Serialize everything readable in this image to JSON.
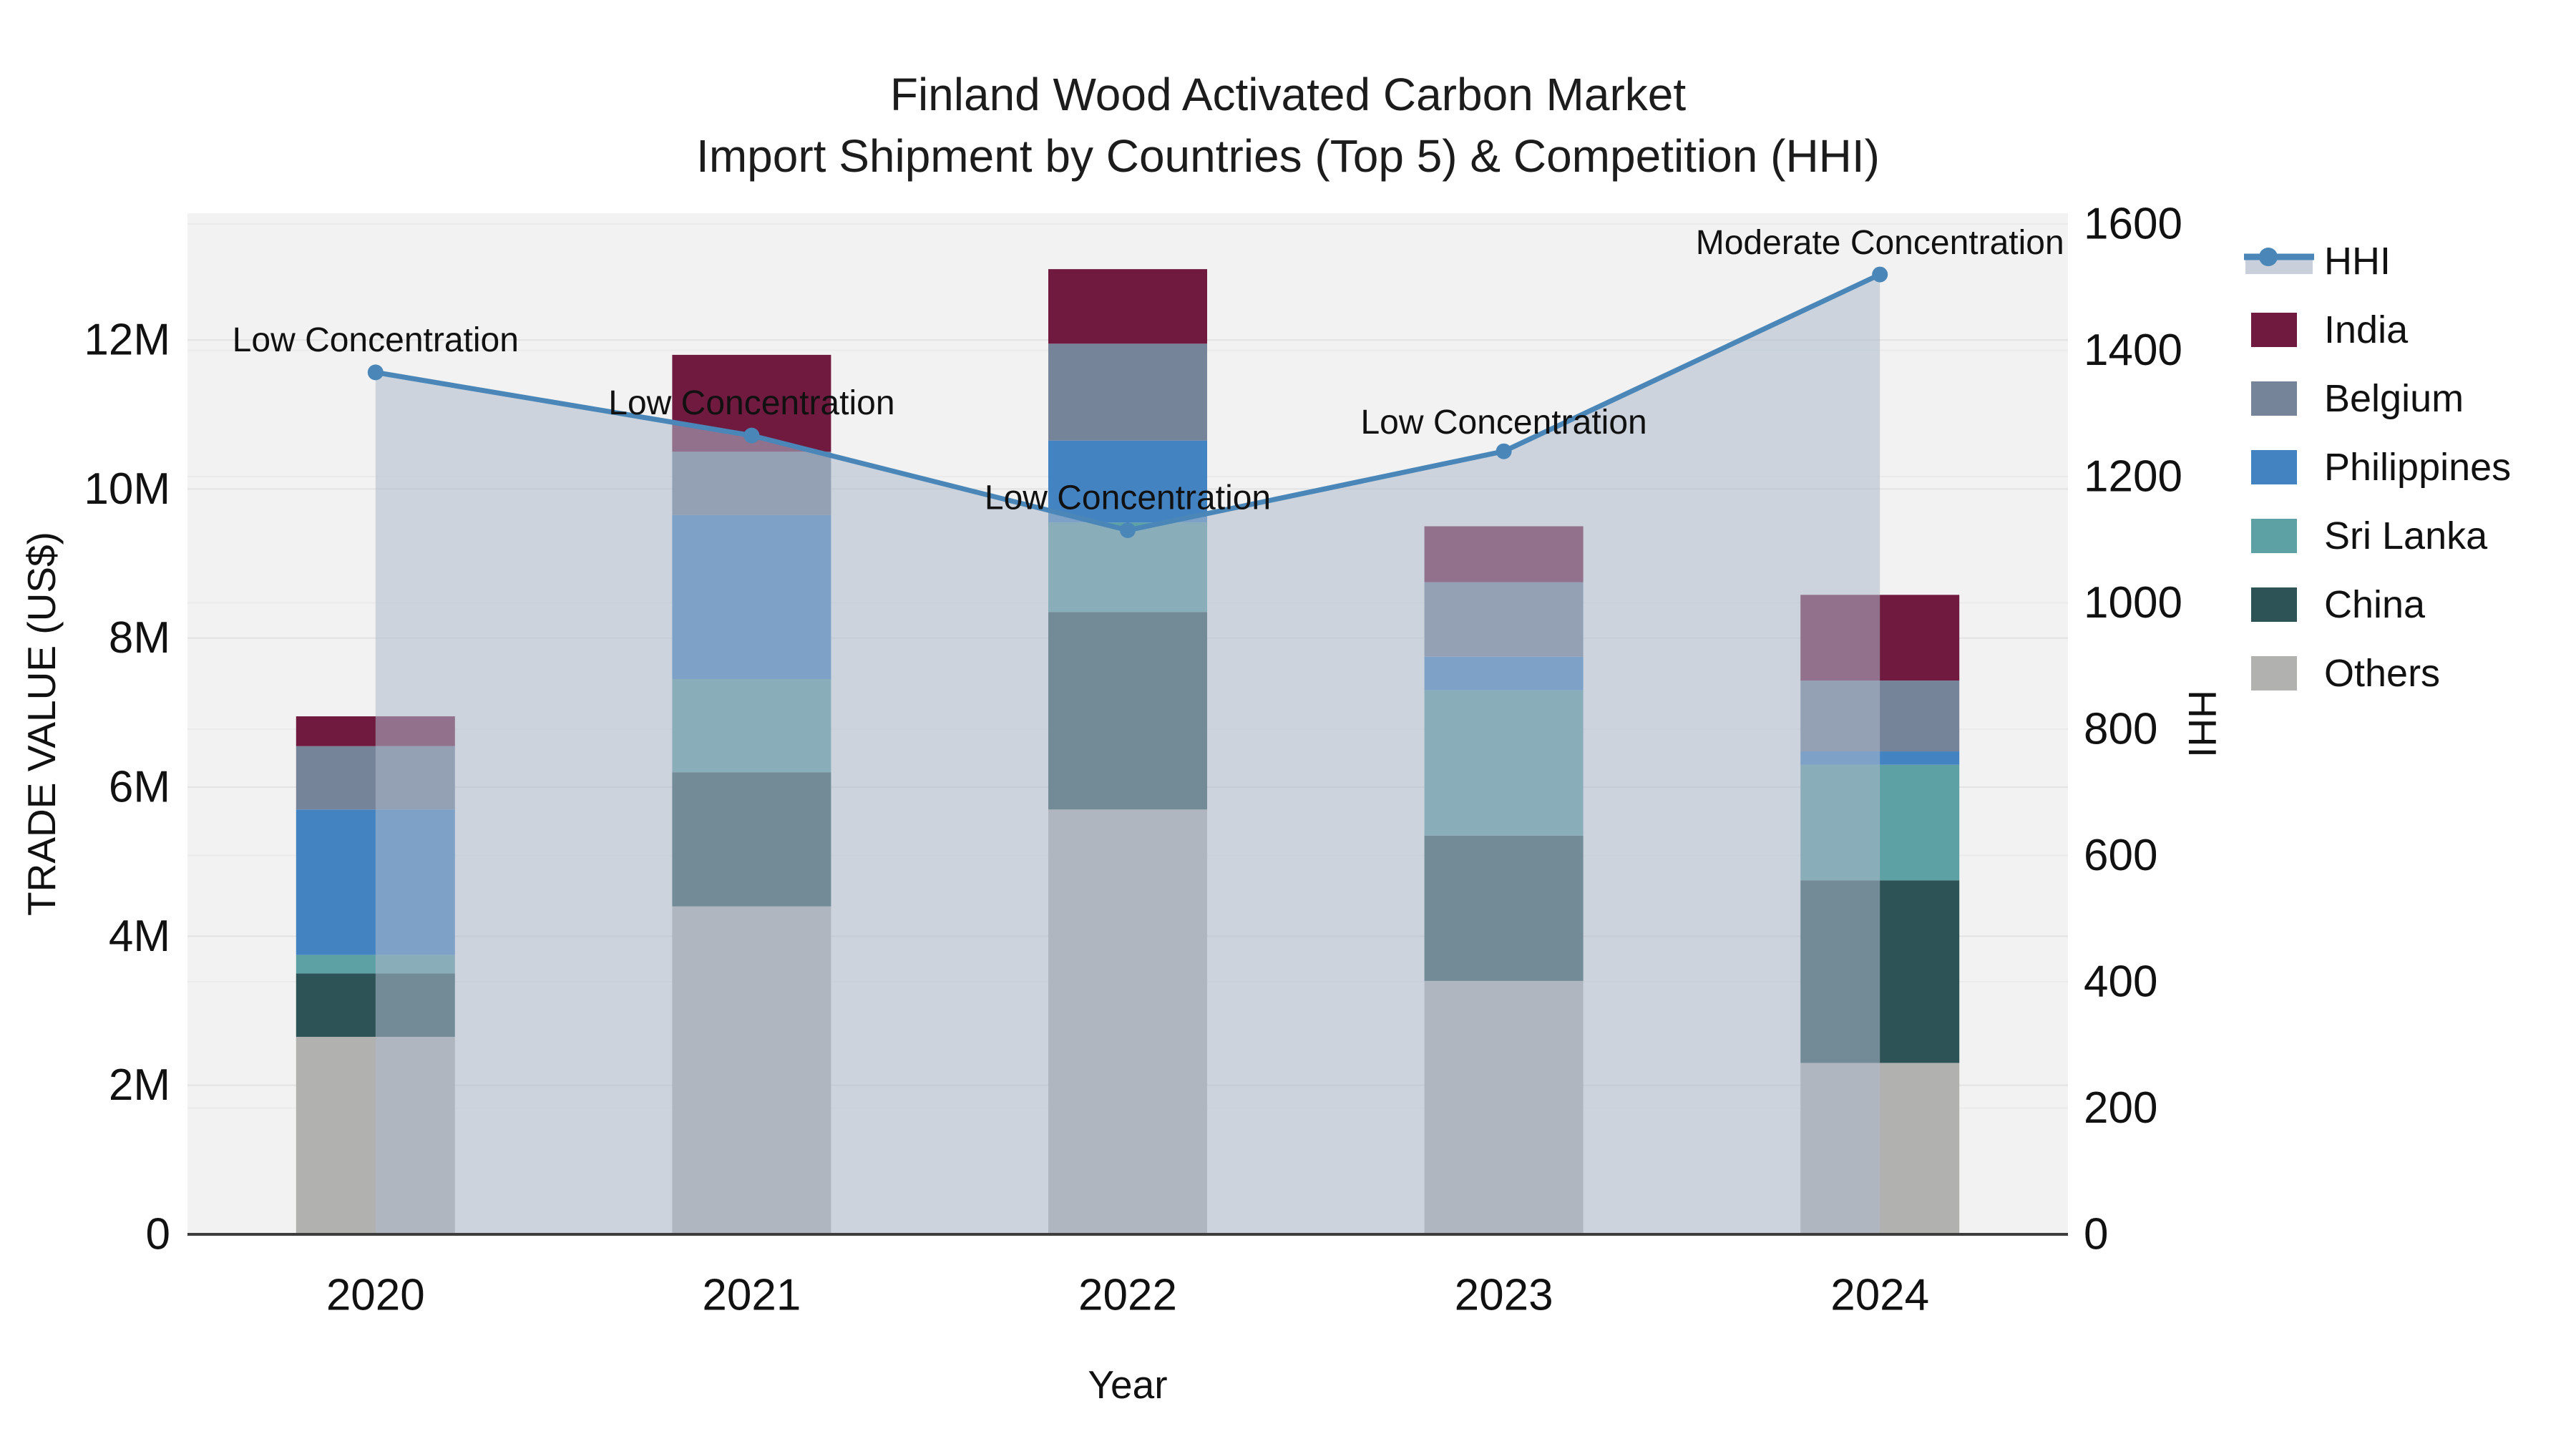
{
  "title": {
    "line1": "Finland Wood Activated Carbon Market",
    "line2": "Import Shipment by Countries (Top 5) & Competition (HHI)"
  },
  "axes": {
    "x": {
      "title": "Year",
      "tick_labels": [
        "2020",
        "2021",
        "2022",
        "2023",
        "2024"
      ]
    },
    "y_left": {
      "title": "TRADE VALUE (US$)",
      "tick_labels": [
        "0",
        "2M",
        "4M",
        "6M",
        "8M",
        "10M",
        "12M"
      ],
      "tick_values_millions": [
        0,
        2,
        4,
        6,
        8,
        10,
        12
      ],
      "range_millions": [
        0,
        13.7
      ]
    },
    "y_right": {
      "title": "HHI",
      "tick_labels": [
        "0",
        "200",
        "400",
        "600",
        "800",
        "1000",
        "1200",
        "1400",
        "1600"
      ],
      "tick_values": [
        0,
        200,
        400,
        600,
        800,
        1000,
        1200,
        1400,
        1600
      ],
      "range": [
        0,
        1600
      ]
    }
  },
  "legend": {
    "items": [
      {
        "label": "HHI",
        "type": "line",
        "color": "#4A87B8",
        "band_color": "#C9D0DC"
      },
      {
        "label": "India",
        "type": "swatch",
        "color": "#701A3F"
      },
      {
        "label": "Belgium",
        "type": "swatch",
        "color": "#76849A"
      },
      {
        "label": "Philippines",
        "type": "swatch",
        "color": "#4483C1"
      },
      {
        "label": "Sri Lanka",
        "type": "swatch",
        "color": "#5DA1A5"
      },
      {
        "label": "China",
        "type": "swatch",
        "color": "#2E5356"
      },
      {
        "label": "Others",
        "type": "swatch",
        "color": "#B1B1AF"
      }
    ]
  },
  "chart_data": {
    "type": "bar",
    "subtype": "stacked-bar-with-line",
    "categories": [
      "2020",
      "2021",
      "2022",
      "2023",
      "2024"
    ],
    "bar_unit": "million US$",
    "series": [
      {
        "name": "India",
        "color": "#701A3F",
        "values": [
          0.4,
          1.3,
          1.0,
          0.75,
          1.15
        ]
      },
      {
        "name": "Belgium",
        "color": "#76849A",
        "values": [
          0.85,
          0.85,
          1.3,
          1.0,
          0.95
        ]
      },
      {
        "name": "Philippines",
        "color": "#4483C1",
        "values": [
          1.95,
          2.2,
          1.1,
          0.45,
          0.18
        ]
      },
      {
        "name": "Sri Lanka",
        "color": "#5DA1A5",
        "values": [
          0.25,
          1.25,
          1.2,
          1.95,
          1.55
        ]
      },
      {
        "name": "China",
        "color": "#2E5356",
        "values": [
          0.85,
          1.8,
          2.65,
          1.95,
          2.45
        ]
      },
      {
        "name": "Others",
        "color": "#B1B1AF",
        "values": [
          2.65,
          4.4,
          5.7,
          3.4,
          2.3
        ]
      }
    ],
    "stack_totals_millions": [
      6.95,
      11.8,
      12.95,
      9.5,
      8.58
    ],
    "line": {
      "name": "HHI",
      "axis": "right",
      "color": "#4A87B8",
      "area_fill": "rgba(173,185,204,0.55)",
      "values": [
        1365,
        1265,
        1115,
        1240,
        1520
      ]
    },
    "annotations": [
      {
        "text": "Low Concentration",
        "category": "2020",
        "dy": -45
      },
      {
        "text": "Low Concentration",
        "category": "2021",
        "dy": -45
      },
      {
        "text": "Low Concentration",
        "category": "2022",
        "dy": -45
      },
      {
        "text": "Low Concentration",
        "category": "2023",
        "dy": -40
      },
      {
        "text": "Moderate Concentration",
        "category": "2024",
        "dy": -44
      }
    ],
    "layout_hints": {
      "plot_background": "#F2F2F2",
      "gridline_color_left": "#E2E2E2",
      "gridline_color_right": "#EBEBEB",
      "axis_line_color": "#3D3D3D",
      "legend_position": "right",
      "grid": "on"
    }
  }
}
